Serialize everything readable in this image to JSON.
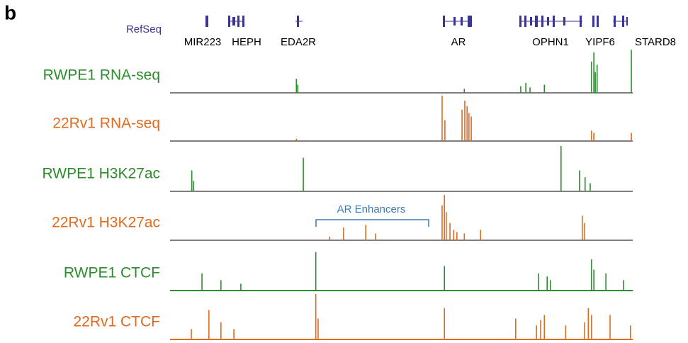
{
  "panel_label": "b",
  "refseq": {
    "label": "RefSeq",
    "genes": [
      "MIR223",
      "HEPH",
      "EDA2R",
      "AR",
      "OPHN1",
      "YIPF6",
      "STARD8"
    ]
  },
  "annotation": "AR Enhancers",
  "tracks": [
    {
      "label": "RWPE1 RNA-seq",
      "color": "#2e8b2e",
      "peaks": {
        "x": [
          27.3,
          27.6,
          63.6,
          75.8,
          76.9,
          77.8,
          80.9,
          91.1,
          91.6,
          91.9,
          92.3,
          99.7
        ],
        "values": [
          31,
          18,
          9,
          15,
          22,
          12,
          18,
          69,
          89,
          46,
          62,
          95
        ]
      }
    },
    {
      "label": "22Rv1 RNA-seq",
      "color": "#e06a1e",
      "peaks": {
        "x": [
          58.8,
          59.4,
          63.1,
          63.7,
          64.2,
          64.6,
          65.1,
          91.1,
          91.6,
          99.7,
          27.3
        ],
        "values": [
          100,
          46,
          69,
          89,
          77,
          62,
          54,
          23,
          18,
          18,
          5
        ]
      }
    },
    {
      "label": "RWPE1 H3K27ac",
      "color": "#2e8b2e",
      "peaks": {
        "x": [
          4.7,
          5.1,
          28.8,
          84.5,
          88.5,
          89.7,
          90.8
        ],
        "values": [
          46,
          23,
          74,
          100,
          46,
          31,
          18
        ]
      }
    },
    {
      "label": "22Rv1 H3K27ac",
      "color": "#e06a1e",
      "peaks": {
        "x": [
          37.5,
          42.3,
          44.4,
          58.8,
          59.3,
          59.7,
          60.5,
          61.3,
          62.0,
          63.6,
          67.1,
          89.1,
          89.6,
          34.5
        ],
        "values": [
          28,
          34,
          15,
          77,
          100,
          62,
          38,
          23,
          18,
          15,
          23,
          54,
          38,
          8
        ]
      }
    },
    {
      "label": "RWPE1 CTCF",
      "color": "#2e8b2e",
      "peaks": {
        "x": [
          6.9,
          11.0,
          15.3,
          31.5,
          59.3,
          79.6,
          81.5,
          82.2,
          91.1,
          91.6,
          94.2,
          98.0
        ],
        "values": [
          38,
          23,
          15,
          85,
          54,
          38,
          31,
          23,
          69,
          46,
          38,
          23
        ]
      }
    },
    {
      "label": "22Rv1 CTCF",
      "color": "#e06a1e",
      "peaks": {
        "x": [
          4.6,
          8.4,
          11.0,
          13.8,
          31.5,
          32.0,
          59.3,
          74.7,
          79.2,
          80.1,
          80.9,
          85.5,
          89.6,
          90.4,
          91.1,
          95.1,
          99.5
        ],
        "values": [
          23,
          65,
          38,
          23,
          100,
          46,
          69,
          46,
          31,
          43,
          54,
          31,
          38,
          69,
          54,
          54,
          31
        ]
      }
    }
  ]
}
